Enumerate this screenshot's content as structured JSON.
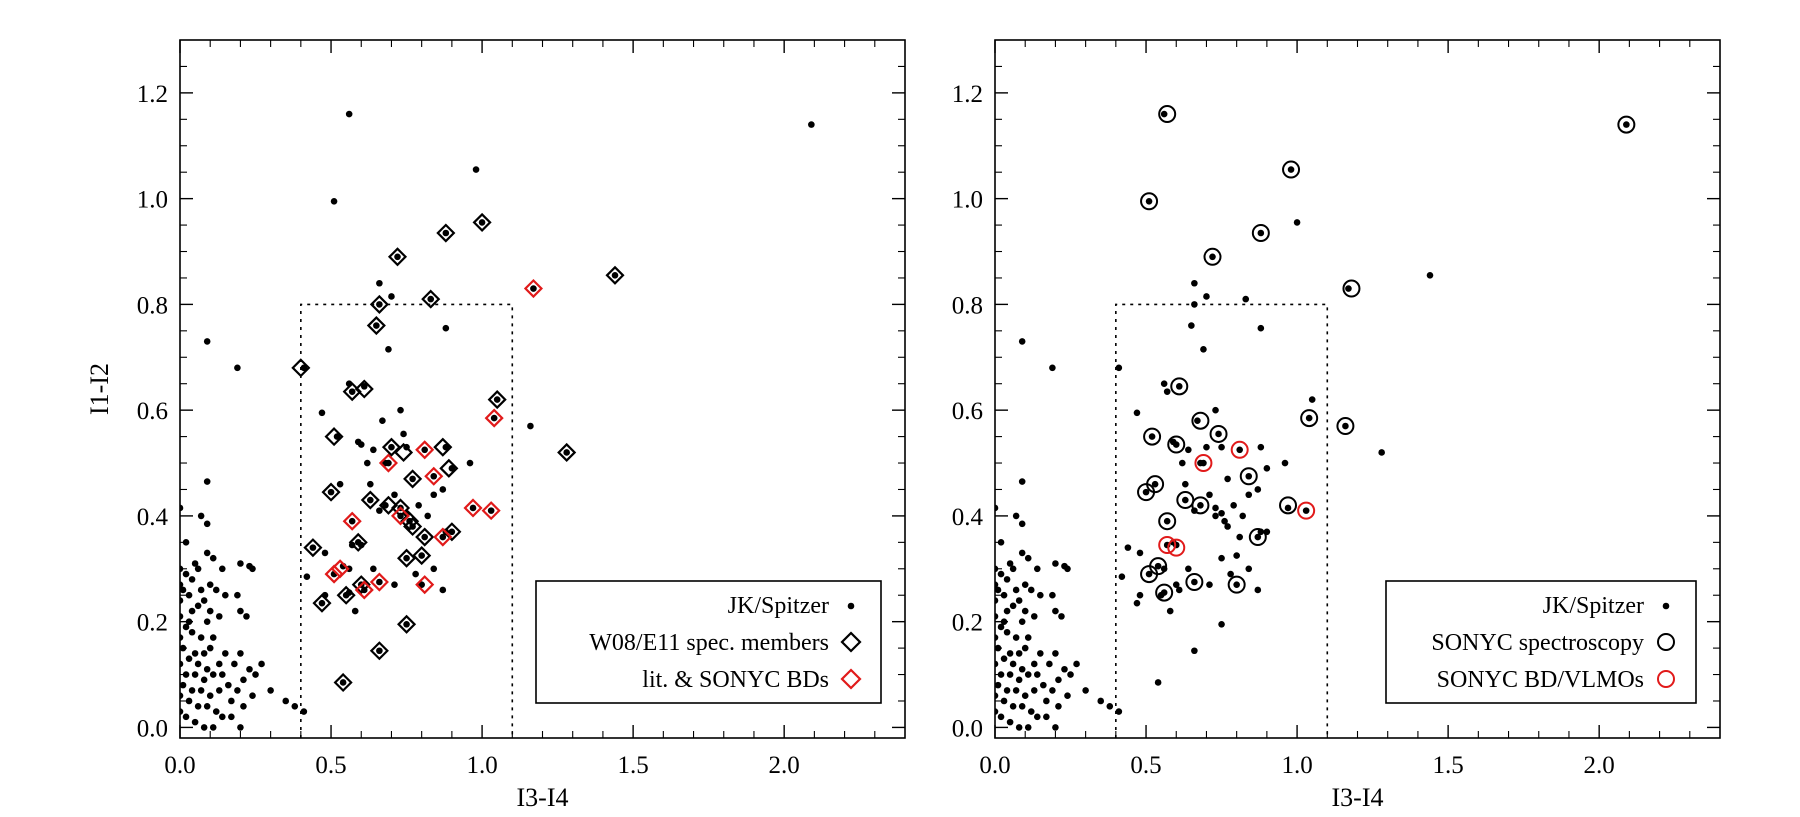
{
  "chart_data": [
    {
      "type": "scatter",
      "title": "",
      "xlabel": "I3-I4",
      "ylabel": "I1-I2",
      "xlim": [
        0.0,
        2.4
      ],
      "ylim": [
        -0.02,
        1.3
      ],
      "xticks": [
        0.0,
        0.5,
        1.0,
        1.5,
        2.0
      ],
      "xtick_labels": [
        "0.0",
        "0.5",
        "1.0",
        "1.5",
        "2.0"
      ],
      "yticks": [
        0.0,
        0.2,
        0.4,
        0.6,
        0.8,
        1.0,
        1.2
      ],
      "ytick_labels": [
        "0.0",
        "0.2",
        "0.4",
        "0.6",
        "0.8",
        "1.0",
        "1.2"
      ],
      "selection_box": {
        "x": [
          0.4,
          1.1
        ],
        "y": [
          0.0,
          0.8
        ]
      },
      "legend": {
        "position": "bottom-right",
        "entries": [
          {
            "label": "JK/Spitzer",
            "marker": "dot",
            "color": "#000000"
          },
          {
            "label": "W08/E11 spec. members",
            "marker": "diamond",
            "color": "#000000"
          },
          {
            "label": "lit. & SONYC BDs",
            "marker": "diamond",
            "color": "#e11a1a"
          }
        ]
      },
      "series": [
        {
          "name": "JK/Spitzer",
          "marker": "dot",
          "color": "#000000",
          "ref": "jk_points"
        },
        {
          "name": "W08/E11 spec. members",
          "marker": "diamond",
          "color": "#000000",
          "points": [
            [
              0.4,
              0.68
            ],
            [
              0.44,
              0.34
            ],
            [
              0.47,
              0.235
            ],
            [
              0.5,
              0.445
            ],
            [
              0.51,
              0.55
            ],
            [
              0.54,
              0.085
            ],
            [
              0.55,
              0.25
            ],
            [
              0.57,
              0.635
            ],
            [
              0.59,
              0.35
            ],
            [
              0.6,
              0.27
            ],
            [
              0.61,
              0.64
            ],
            [
              0.63,
              0.43
            ],
            [
              0.65,
              0.76
            ],
            [
              0.66,
              0.8
            ],
            [
              0.66,
              0.145
            ],
            [
              0.69,
              0.42
            ],
            [
              0.7,
              0.53
            ],
            [
              0.72,
              0.89
            ],
            [
              0.73,
              0.415
            ],
            [
              0.74,
              0.52
            ],
            [
              0.75,
              0.32
            ],
            [
              0.75,
              0.195
            ],
            [
              0.76,
              0.39
            ],
            [
              0.77,
              0.38
            ],
            [
              0.77,
              0.47
            ],
            [
              0.8,
              0.325
            ],
            [
              0.81,
              0.36
            ],
            [
              0.83,
              0.81
            ],
            [
              0.87,
              0.53
            ],
            [
              0.88,
              0.935
            ],
            [
              0.89,
              0.49
            ],
            [
              0.9,
              0.37
            ],
            [
              1.0,
              0.955
            ],
            [
              1.05,
              0.62
            ],
            [
              1.28,
              0.52
            ],
            [
              1.44,
              0.855
            ]
          ]
        },
        {
          "name": "lit. & SONYC BDs",
          "marker": "diamond",
          "color": "#e11a1a",
          "points": [
            [
              0.51,
              0.29
            ],
            [
              0.53,
              0.3
            ],
            [
              0.57,
              0.39
            ],
            [
              0.61,
              0.26
            ],
            [
              0.66,
              0.275
            ],
            [
              0.69,
              0.5
            ],
            [
              0.73,
              0.4
            ],
            [
              0.81,
              0.525
            ],
            [
              0.81,
              0.27
            ],
            [
              0.84,
              0.475
            ],
            [
              0.87,
              0.36
            ],
            [
              0.97,
              0.415
            ],
            [
              1.03,
              0.41
            ],
            [
              1.04,
              0.585
            ],
            [
              1.17,
              0.83
            ]
          ]
        }
      ]
    },
    {
      "type": "scatter",
      "title": "",
      "xlabel": "I3-I4",
      "ylabel": "",
      "xlim": [
        0.0,
        2.4
      ],
      "ylim": [
        -0.02,
        1.3
      ],
      "xticks": [
        0.0,
        0.5,
        1.0,
        1.5,
        2.0
      ],
      "xtick_labels": [
        "0.0",
        "0.5",
        "1.0",
        "1.5",
        "2.0"
      ],
      "yticks": [
        0.0,
        0.2,
        0.4,
        0.6,
        0.8,
        1.0,
        1.2
      ],
      "ytick_labels": [
        "0.0",
        "0.2",
        "0.4",
        "0.6",
        "0.8",
        "1.0",
        "1.2"
      ],
      "selection_box": {
        "x": [
          0.4,
          1.1
        ],
        "y": [
          0.0,
          0.8
        ]
      },
      "legend": {
        "position": "bottom-right",
        "entries": [
          {
            "label": "JK/Spitzer",
            "marker": "dot",
            "color": "#000000"
          },
          {
            "label": "SONYC spectroscopy",
            "marker": "circle",
            "color": "#000000"
          },
          {
            "label": "SONYC BD/VLMOs",
            "marker": "circle",
            "color": "#e11a1a"
          }
        ]
      },
      "series": [
        {
          "name": "JK/Spitzer",
          "marker": "dot",
          "color": "#000000",
          "ref": "jk_points"
        },
        {
          "name": "SONYC spectroscopy",
          "marker": "circle",
          "color": "#000000",
          "points": [
            [
              0.5,
              0.445
            ],
            [
              0.51,
              0.29
            ],
            [
              0.51,
              0.995
            ],
            [
              0.52,
              0.55
            ],
            [
              0.53,
              0.46
            ],
            [
              0.54,
              0.305
            ],
            [
              0.56,
              0.255
            ],
            [
              0.57,
              0.39
            ],
            [
              0.57,
              1.16
            ],
            [
              0.6,
              0.535
            ],
            [
              0.61,
              0.645
            ],
            [
              0.63,
              0.43
            ],
            [
              0.66,
              0.275
            ],
            [
              0.68,
              0.42
            ],
            [
              0.68,
              0.58
            ],
            [
              0.72,
              0.89
            ],
            [
              0.74,
              0.555
            ],
            [
              0.8,
              0.27
            ],
            [
              0.84,
              0.475
            ],
            [
              0.87,
              0.36
            ],
            [
              0.88,
              0.935
            ],
            [
              0.97,
              0.42
            ],
            [
              0.98,
              1.055
            ],
            [
              1.04,
              0.585
            ],
            [
              1.16,
              0.57
            ],
            [
              1.18,
              0.83
            ],
            [
              2.09,
              1.14
            ]
          ]
        },
        {
          "name": "SONYC BD/VLMOs",
          "marker": "circle",
          "color": "#e11a1a",
          "points": [
            [
              0.57,
              0.345
            ],
            [
              0.6,
              0.34
            ],
            [
              0.69,
              0.5
            ],
            [
              0.81,
              0.525
            ],
            [
              1.03,
              0.41
            ]
          ]
        }
      ]
    }
  ],
  "jk_points": [
    [
      0.56,
      1.16
    ],
    [
      2.09,
      1.14
    ],
    [
      0.98,
      1.055
    ],
    [
      0.51,
      0.995
    ],
    [
      1.0,
      0.955
    ],
    [
      0.88,
      0.935
    ],
    [
      0.72,
      0.89
    ],
    [
      1.44,
      0.855
    ],
    [
      0.66,
      0.84
    ],
    [
      1.17,
      0.83
    ],
    [
      0.7,
      0.815
    ],
    [
      0.83,
      0.81
    ],
    [
      0.66,
      0.8
    ],
    [
      0.65,
      0.76
    ],
    [
      0.88,
      0.755
    ],
    [
      0.09,
      0.73
    ],
    [
      0.69,
      0.715
    ],
    [
      0.19,
      0.68
    ],
    [
      0.41,
      0.68
    ],
    [
      0.61,
      0.645
    ],
    [
      0.57,
      0.635
    ],
    [
      0.56,
      0.65
    ],
    [
      1.05,
      0.62
    ],
    [
      0.73,
      0.6
    ],
    [
      0.47,
      0.595
    ],
    [
      1.04,
      0.585
    ],
    [
      0.67,
      0.58
    ],
    [
      1.16,
      0.57
    ],
    [
      0.74,
      0.555
    ],
    [
      0.52,
      0.55
    ],
    [
      0.59,
      0.54
    ],
    [
      0.6,
      0.535
    ],
    [
      0.75,
      0.53
    ],
    [
      0.88,
      0.53
    ],
    [
      0.7,
      0.53
    ],
    [
      0.64,
      0.525
    ],
    [
      1.28,
      0.52
    ],
    [
      0.68,
      0.5
    ],
    [
      0.81,
      0.525
    ],
    [
      0.77,
      0.47
    ],
    [
      0.84,
      0.475
    ],
    [
      0.9,
      0.49
    ],
    [
      0.63,
      0.46
    ],
    [
      0.53,
      0.46
    ],
    [
      0.09,
      0.465
    ],
    [
      0.5,
      0.445
    ],
    [
      0.63,
      0.43
    ],
    [
      0.68,
      0.42
    ],
    [
      0.73,
      0.415
    ],
    [
      0.87,
      0.45
    ],
    [
      0.97,
      0.415
    ],
    [
      1.03,
      0.41
    ],
    [
      0.0,
      0.415
    ],
    [
      0.07,
      0.4
    ],
    [
      0.09,
      0.385
    ],
    [
      0.75,
      0.405
    ],
    [
      0.76,
      0.39
    ],
    [
      0.77,
      0.38
    ],
    [
      0.57,
      0.39
    ],
    [
      0.81,
      0.36
    ],
    [
      0.87,
      0.36
    ],
    [
      0.88,
      0.37
    ],
    [
      0.9,
      0.37
    ],
    [
      0.6,
      0.345
    ],
    [
      0.59,
      0.35
    ],
    [
      0.44,
      0.34
    ],
    [
      0.57,
      0.345
    ],
    [
      0.02,
      0.35
    ],
    [
      0.09,
      0.33
    ],
    [
      0.11,
      0.32
    ],
    [
      0.48,
      0.33
    ],
    [
      0.75,
      0.32
    ],
    [
      0.8,
      0.325
    ],
    [
      0.2,
      0.31
    ],
    [
      0.23,
      0.305
    ],
    [
      0.24,
      0.3
    ],
    [
      0.05,
      0.31
    ],
    [
      0.0,
      0.3
    ],
    [
      0.02,
      0.29
    ],
    [
      0.06,
      0.3
    ],
    [
      0.14,
      0.3
    ],
    [
      0.51,
      0.29
    ],
    [
      0.54,
      0.305
    ],
    [
      0.56,
      0.3
    ],
    [
      0.42,
      0.285
    ],
    [
      0.04,
      0.28
    ],
    [
      0.0,
      0.27
    ],
    [
      0.1,
      0.27
    ],
    [
      0.12,
      0.26
    ],
    [
      0.07,
      0.26
    ],
    [
      0.03,
      0.25
    ],
    [
      0.08,
      0.24
    ],
    [
      0.0,
      0.24
    ],
    [
      0.06,
      0.23
    ],
    [
      0.1,
      0.22
    ],
    [
      0.13,
      0.21
    ],
    [
      0.03,
      0.2
    ],
    [
      0.09,
      0.2
    ],
    [
      0.15,
      0.25
    ],
    [
      0.19,
      0.25
    ],
    [
      0.2,
      0.22
    ],
    [
      0.22,
      0.21
    ],
    [
      0.66,
      0.275
    ],
    [
      0.6,
      0.27
    ],
    [
      0.8,
      0.27
    ],
    [
      0.56,
      0.255
    ],
    [
      0.55,
      0.25
    ],
    [
      0.61,
      0.26
    ],
    [
      0.47,
      0.235
    ],
    [
      0.02,
      0.19
    ],
    [
      0.04,
      0.18
    ],
    [
      0.0,
      0.17
    ],
    [
      0.07,
      0.17
    ],
    [
      0.11,
      0.17
    ],
    [
      0.01,
      0.15
    ],
    [
      0.05,
      0.14
    ],
    [
      0.08,
      0.14
    ],
    [
      0.1,
      0.15
    ],
    [
      0.03,
      0.13
    ],
    [
      0.0,
      0.12
    ],
    [
      0.06,
      0.12
    ],
    [
      0.09,
      0.11
    ],
    [
      0.13,
      0.12
    ],
    [
      0.02,
      0.1
    ],
    [
      0.05,
      0.1
    ],
    [
      0.08,
      0.09
    ],
    [
      0.11,
      0.1
    ],
    [
      0.14,
      0.1
    ],
    [
      0.01,
      0.08
    ],
    [
      0.04,
      0.07
    ],
    [
      0.07,
      0.07
    ],
    [
      0.1,
      0.06
    ],
    [
      0.13,
      0.07
    ],
    [
      0.16,
      0.08
    ],
    [
      0.03,
      0.05
    ],
    [
      0.06,
      0.04
    ],
    [
      0.09,
      0.04
    ],
    [
      0.12,
      0.03
    ],
    [
      0.0,
      0.03
    ],
    [
      0.02,
      0.02
    ],
    [
      0.05,
      0.01
    ],
    [
      0.08,
      0.0
    ],
    [
      0.11,
      0.0
    ],
    [
      0.14,
      0.02
    ],
    [
      0.17,
      0.05
    ],
    [
      0.19,
      0.07
    ],
    [
      0.21,
      0.09
    ],
    [
      0.23,
      0.11
    ],
    [
      0.25,
      0.1
    ],
    [
      0.27,
      0.12
    ],
    [
      0.15,
      0.14
    ],
    [
      0.18,
      0.12
    ],
    [
      0.2,
      0.14
    ],
    [
      0.24,
      0.06
    ],
    [
      0.21,
      0.04
    ],
    [
      0.3,
      0.07
    ],
    [
      0.35,
      0.05
    ],
    [
      0.38,
      0.04
    ],
    [
      0.41,
      0.03
    ],
    [
      0.17,
      0.02
    ],
    [
      0.2,
      0.0
    ],
    [
      0.0,
      0.06
    ],
    [
      0.0,
      0.21
    ],
    [
      0.04,
      0.22
    ],
    [
      0.01,
      0.26
    ],
    [
      0.66,
      0.145
    ],
    [
      0.75,
      0.195
    ],
    [
      0.54,
      0.085
    ],
    [
      0.48,
      0.25
    ],
    [
      0.58,
      0.22
    ],
    [
      0.64,
      0.3
    ],
    [
      0.71,
      0.27
    ],
    [
      0.78,
      0.29
    ],
    [
      0.84,
      0.3
    ],
    [
      0.87,
      0.26
    ],
    [
      0.66,
      0.41
    ],
    [
      0.71,
      0.44
    ],
    [
      0.79,
      0.42
    ],
    [
      0.82,
      0.4
    ],
    [
      0.73,
      0.4
    ],
    [
      0.69,
      0.5
    ],
    [
      0.96,
      0.5
    ],
    [
      0.62,
      0.5
    ],
    [
      0.84,
      0.44
    ]
  ]
}
